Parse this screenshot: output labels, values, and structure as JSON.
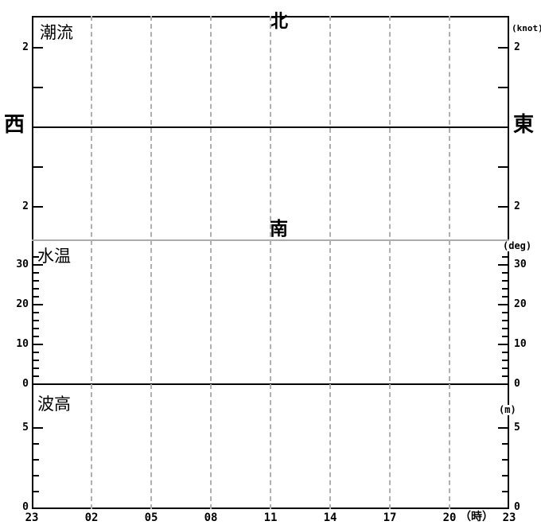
{
  "chart_data": {
    "type": "line",
    "title": "",
    "grid": "vertical-dashed",
    "x_axis": {
      "tick_labels": [
        "23",
        "02",
        "05",
        "08",
        "11",
        "14",
        "17",
        "20",
        "23"
      ],
      "unit_suffix": "（時）",
      "hours_between_ticks": 3
    },
    "panels": [
      {
        "id": "tidal_current",
        "label": "潮流",
        "unit": "(knot)",
        "directions": {
          "north": "北",
          "south": "南",
          "west": "西",
          "east": "東"
        },
        "y_ticks": [
          {
            "value": 2,
            "label": "2"
          },
          {
            "value": 1,
            "label": ""
          },
          {
            "value": -1,
            "label": ""
          },
          {
            "value": -2,
            "label": "2"
          }
        ],
        "zero_line": true,
        "series": []
      },
      {
        "id": "water_temperature",
        "label": "水温",
        "unit": "(deg)",
        "y_ticks": [
          {
            "value": 30,
            "label": "30"
          },
          {
            "value": 20,
            "label": "20"
          },
          {
            "value": 10,
            "label": "10"
          },
          {
            "value": 0,
            "label": "0"
          }
        ],
        "minor_tick_values": [
          2,
          4,
          6,
          8,
          12,
          14,
          16,
          18,
          22,
          24,
          26,
          28,
          32
        ],
        "series": []
      },
      {
        "id": "wave_height",
        "label": "波高",
        "unit": "(m)",
        "y_ticks": [
          {
            "value": 5,
            "label": "5"
          },
          {
            "value": 0,
            "label": "0"
          }
        ],
        "minor_tick_values": [
          1,
          2,
          3,
          4
        ],
        "series": []
      }
    ],
    "colors": {
      "axis": "#000000",
      "grid": "#b0b0b0",
      "separator": "#ababab",
      "background": "#ffffff"
    }
  }
}
